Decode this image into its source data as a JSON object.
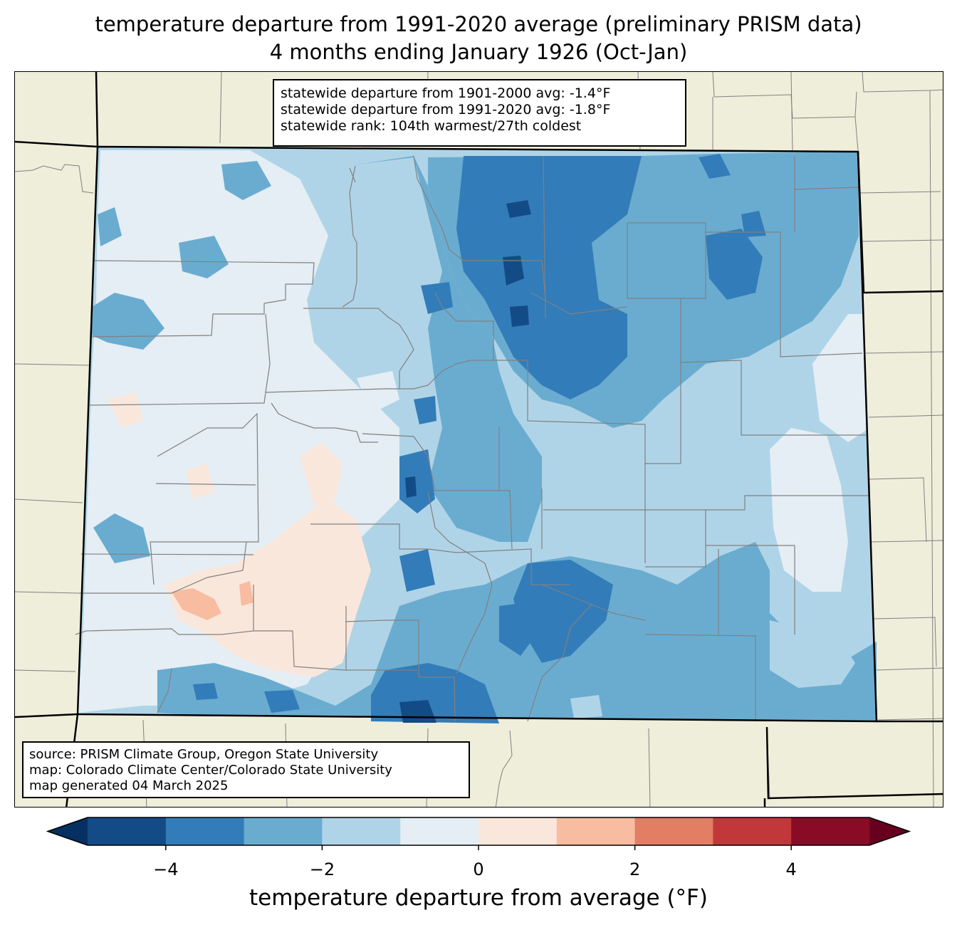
{
  "title": {
    "line1": "temperature departure from 1991-2020 average (preliminary PRISM data)",
    "line2": "4 months ending January 1926 (Oct-Jan)"
  },
  "stats": {
    "line1": "statewide departure from 1901-2000 avg: -1.4°F",
    "line2": "statewide departure from 1991-2020 avg: -1.8°F",
    "line3": "statewide rank: 104th warmest/27th coldest"
  },
  "source": {
    "line1": "source: PRISM Climate Group, Oregon State University",
    "line2": "map: Colorado Climate Center/Colorado State University",
    "line3": "map generated 04 March 2025"
  },
  "colorbar": {
    "label": "temperature departure from average (°F)",
    "min": -5,
    "max": 5,
    "step": 1,
    "ticks": [
      {
        "value": -4,
        "label": "−4"
      },
      {
        "value": -2,
        "label": "−2"
      },
      {
        "value": 0,
        "label": "0"
      },
      {
        "value": 2,
        "label": "2"
      },
      {
        "value": 4,
        "label": "4"
      }
    ],
    "under_color": "#053061",
    "over_color": "#67001f",
    "colors": [
      "#134b87",
      "#327cb9",
      "#6aacd0",
      "#b0d4e7",
      "#e4eef4",
      "#fae7dc",
      "#f8bca0",
      "#e17e64",
      "#c1373a",
      "#8a0b25"
    ]
  },
  "map_colors": {
    "land_outside": "#efeedb",
    "county_lines": "#808080",
    "state_lines": "#000000"
  }
}
